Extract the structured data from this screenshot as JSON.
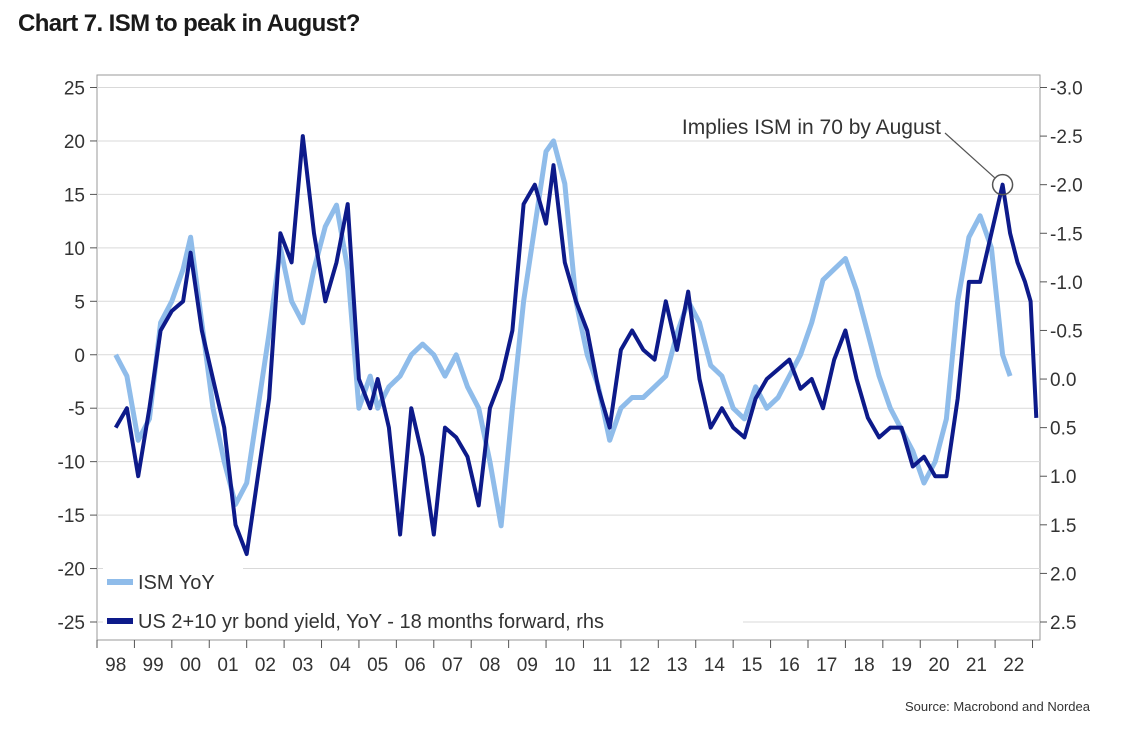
{
  "title": "Chart 7. ISM to peak in August?",
  "source": "Source: Macrobond and Nordea",
  "chart_data": {
    "type": "line",
    "annotation": "Implies ISM in 70 by August",
    "x_tick_labels": [
      "98",
      "99",
      "00",
      "01",
      "02",
      "03",
      "04",
      "05",
      "06",
      "07",
      "08",
      "09",
      "10",
      "11",
      "12",
      "13",
      "14",
      "15",
      "16",
      "17",
      "18",
      "19",
      "20",
      "21",
      "22"
    ],
    "y_left": {
      "min": -25,
      "max": 25,
      "ticks": [
        "25",
        "20",
        "15",
        "10",
        "5",
        "0",
        "-5",
        "-10",
        "-15",
        "-20",
        "-25"
      ]
    },
    "y_right": {
      "min": 2.5,
      "max": -3.0,
      "inverted": true,
      "ticks": [
        "-3.0",
        "-2.5",
        "-2.0",
        "-1.5",
        "-1.0",
        "-0.5",
        "0.0",
        "0.5",
        "1.0",
        "1.5",
        "2.0",
        "2.5"
      ]
    },
    "grid": true,
    "legend_position": "bottom-left",
    "series": [
      {
        "name": "ISM YoY",
        "axis": "left",
        "color": "#8fbcea",
        "x": [
          1998.0,
          1998.3,
          1998.6,
          1998.9,
          1999.2,
          1999.5,
          1999.8,
          2000.0,
          2000.3,
          2000.6,
          2000.9,
          2001.2,
          2001.5,
          2001.8,
          2002.1,
          2002.4,
          2002.7,
          2003.0,
          2003.3,
          2003.6,
          2003.9,
          2004.2,
          2004.5,
          2004.8,
          2005.0,
          2005.3,
          2005.6,
          2005.9,
          2006.2,
          2006.5,
          2006.8,
          2007.1,
          2007.4,
          2007.7,
          2008.0,
          2008.3,
          2008.6,
          2008.9,
          2009.2,
          2009.5,
          2009.7,
          2010.0,
          2010.3,
          2010.6,
          2010.9,
          2011.2,
          2011.5,
          2011.8,
          2012.1,
          2012.4,
          2012.7,
          2013.0,
          2013.3,
          2013.6,
          2013.9,
          2014.2,
          2014.5,
          2014.8,
          2015.1,
          2015.4,
          2015.7,
          2016.0,
          2016.3,
          2016.6,
          2016.9,
          2017.2,
          2017.5,
          2017.8,
          2018.1,
          2018.4,
          2018.7,
          2019.0,
          2019.3,
          2019.6,
          2019.9,
          2020.2,
          2020.5,
          2020.8,
          2021.1,
          2021.4,
          2021.7,
          2021.9
        ],
        "values": [
          0,
          -2,
          -8,
          -6,
          3,
          5,
          8,
          11,
          3,
          -5,
          -10,
          -14,
          -12,
          -5,
          2,
          10,
          5,
          3,
          8,
          12,
          14,
          8,
          -5,
          -2,
          -5,
          -3,
          -2,
          0,
          1,
          0,
          -2,
          0,
          -3,
          -5,
          -10,
          -16,
          -5,
          5,
          12,
          19,
          20,
          16,
          5,
          0,
          -3,
          -8,
          -5,
          -4,
          -4,
          -3,
          -2,
          2,
          5,
          3,
          -1,
          -2,
          -5,
          -6,
          -3,
          -5,
          -4,
          -2,
          0,
          3,
          7,
          8,
          9,
          6,
          2,
          -2,
          -5,
          -7,
          -9,
          -12,
          -10,
          -6,
          5,
          11,
          13,
          10,
          0,
          -2
        ]
      },
      {
        "name": "US 2+10 yr bond yield, YoY - 18 months forward, rhs",
        "axis": "right",
        "color": "#0d1a8a",
        "x": [
          1998.0,
          1998.3,
          1998.6,
          1998.9,
          1999.2,
          1999.5,
          1999.8,
          2000.0,
          2000.3,
          2000.6,
          2000.9,
          2001.2,
          2001.5,
          2001.8,
          2002.1,
          2002.4,
          2002.7,
          2003.0,
          2003.3,
          2003.6,
          2003.9,
          2004.2,
          2004.5,
          2004.8,
          2005.0,
          2005.3,
          2005.6,
          2005.9,
          2006.2,
          2006.5,
          2006.8,
          2007.1,
          2007.4,
          2007.7,
          2008.0,
          2008.3,
          2008.6,
          2008.9,
          2009.2,
          2009.5,
          2009.7,
          2010.0,
          2010.3,
          2010.6,
          2010.9,
          2011.2,
          2011.5,
          2011.8,
          2012.1,
          2012.4,
          2012.7,
          2013.0,
          2013.3,
          2013.6,
          2013.9,
          2014.2,
          2014.5,
          2014.8,
          2015.1,
          2015.4,
          2015.7,
          2016.0,
          2016.3,
          2016.6,
          2016.9,
          2017.2,
          2017.5,
          2017.8,
          2018.1,
          2018.4,
          2018.7,
          2019.0,
          2019.3,
          2019.6,
          2019.9,
          2020.2,
          2020.5,
          2020.8,
          2021.1,
          2021.4,
          2021.7,
          2021.9,
          2022.1,
          2022.3,
          2022.45,
          2022.6
        ],
        "values": [
          0.5,
          0.3,
          1.0,
          0.3,
          -0.5,
          -0.7,
          -0.8,
          -1.3,
          -0.5,
          0.0,
          0.5,
          1.5,
          1.8,
          1.0,
          0.2,
          -1.5,
          -1.2,
          -2.5,
          -1.5,
          -0.8,
          -1.2,
          -1.8,
          0.0,
          0.3,
          0.0,
          0.5,
          1.6,
          0.3,
          0.8,
          1.6,
          0.5,
          0.6,
          0.8,
          1.3,
          0.3,
          0.0,
          -0.5,
          -1.8,
          -2.0,
          -1.6,
          -2.2,
          -1.2,
          -0.8,
          -0.5,
          0.1,
          0.5,
          -0.3,
          -0.5,
          -0.3,
          -0.2,
          -0.8,
          -0.3,
          -0.9,
          0.0,
          0.5,
          0.3,
          0.5,
          0.6,
          0.2,
          0.0,
          -0.1,
          -0.2,
          0.1,
          0.0,
          0.3,
          -0.2,
          -0.5,
          0.0,
          0.4,
          0.6,
          0.5,
          0.5,
          0.9,
          0.8,
          1.0,
          1.0,
          0.2,
          -1.0,
          -1.0,
          -1.5,
          -2.0,
          -1.5,
          -1.2,
          -1.0,
          -0.8,
          0.4
        ]
      }
    ]
  }
}
